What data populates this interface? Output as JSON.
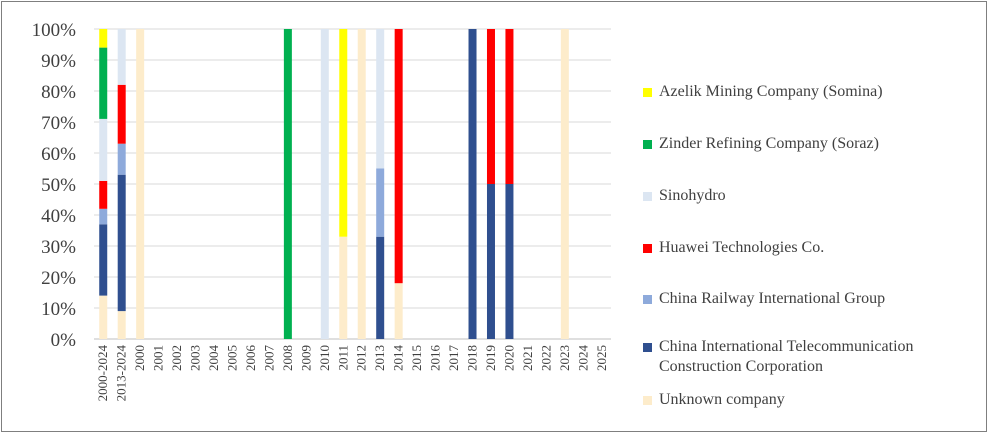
{
  "chart_data": {
    "type": "bar",
    "stacked": true,
    "percent": true,
    "title": "",
    "xlabel": "",
    "ylabel": "",
    "ylim": [
      0,
      100
    ],
    "yticks": [
      "0%",
      "10%",
      "20%",
      "30%",
      "40%",
      "50%",
      "60%",
      "70%",
      "80%",
      "90%",
      "100%"
    ],
    "grid": true,
    "legend_position": "right",
    "categories": [
      "2000-2024",
      "2013-2024",
      "2000",
      "2001",
      "2002",
      "2003",
      "2004",
      "2005",
      "2006",
      "2007",
      "2008",
      "2009",
      "2010",
      "2011",
      "2012",
      "2013",
      "2014",
      "2015",
      "2016",
      "2017",
      "2018",
      "2019",
      "2020",
      "2021",
      "2022",
      "2023",
      "2024",
      "2025"
    ],
    "series": [
      {
        "name": "Unknown company",
        "color": "#fdeccb",
        "values": [
          14,
          9,
          100,
          0,
          0,
          0,
          0,
          0,
          0,
          0,
          0,
          0,
          0,
          33,
          100,
          0,
          18,
          0,
          0,
          0,
          0,
          0,
          0,
          0,
          0,
          100,
          0,
          0
        ]
      },
      {
        "name": "China International Telecommunication Construction Corporation",
        "color": "#2f4f8f",
        "values": [
          23,
          44,
          0,
          0,
          0,
          0,
          0,
          0,
          0,
          0,
          0,
          0,
          0,
          0,
          0,
          33,
          0,
          0,
          0,
          0,
          100,
          50,
          50,
          0,
          0,
          0,
          0,
          0
        ]
      },
      {
        "name": "China Railway International Group",
        "color": "#8eaadb",
        "values": [
          5,
          10,
          0,
          0,
          0,
          0,
          0,
          0,
          0,
          0,
          0,
          0,
          0,
          0,
          0,
          22,
          0,
          0,
          0,
          0,
          0,
          0,
          0,
          0,
          0,
          0,
          0,
          0
        ]
      },
      {
        "name": "Huawei Technologies Co.",
        "color": "#ff0000",
        "values": [
          9,
          19,
          0,
          0,
          0,
          0,
          0,
          0,
          0,
          0,
          0,
          0,
          0,
          0,
          0,
          0,
          82,
          0,
          0,
          0,
          0,
          50,
          50,
          0,
          0,
          0,
          0,
          0
        ]
      },
      {
        "name": "Sinohydro",
        "color": "#dce6f2",
        "values": [
          20,
          18,
          0,
          0,
          0,
          0,
          0,
          0,
          0,
          0,
          0,
          0,
          100,
          0,
          0,
          45,
          0,
          0,
          0,
          0,
          0,
          0,
          0,
          0,
          0,
          0,
          0,
          0
        ]
      },
      {
        "name": "Zinder Refining Company (Soraz)",
        "color": "#00b050",
        "values": [
          23,
          0,
          0,
          0,
          0,
          0,
          0,
          0,
          0,
          0,
          100,
          0,
          0,
          0,
          0,
          0,
          0,
          0,
          0,
          0,
          0,
          0,
          0,
          0,
          0,
          0,
          0,
          0
        ]
      },
      {
        "name": "Azelik Mining Company (Somina)",
        "color": "#ffff00",
        "values": [
          6,
          0,
          0,
          0,
          0,
          0,
          0,
          0,
          0,
          0,
          0,
          0,
          0,
          67,
          0,
          0,
          0,
          0,
          0,
          0,
          0,
          0,
          0,
          0,
          0,
          0,
          0,
          0
        ]
      }
    ],
    "legend_order": [
      "Azelik Mining Company (Somina)",
      "Zinder Refining Company (Soraz)",
      "Sinohydro",
      "Huawei Technologies Co.",
      "China Railway International Group",
      "China International Telecommunication Construction Corporation",
      "Unknown company"
    ],
    "legend_lines": {
      "China International Telecommunication Construction Corporation": [
        "China International Telecommunication",
        "Construction Corporation"
      ]
    }
  }
}
